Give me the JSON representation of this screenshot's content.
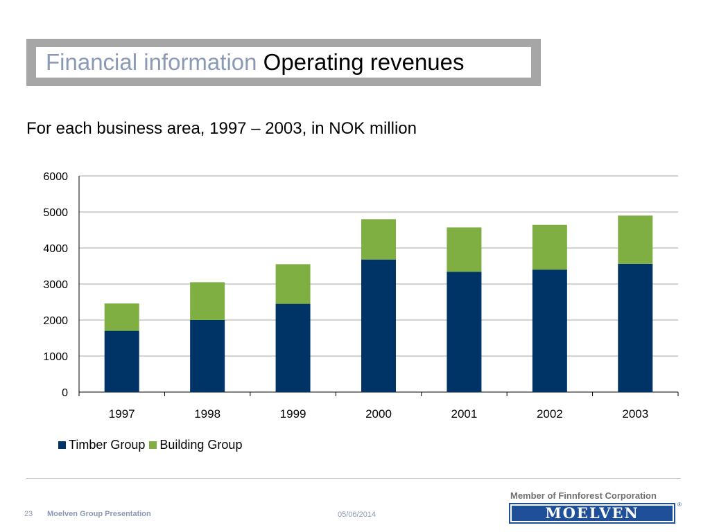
{
  "slide": {
    "title_part1": "Financial information",
    "title_part2": "Operating revenues",
    "subtitle": "For each business area, 1997 – 2003, in NOK million",
    "page_number": "23",
    "presentation_name": "Moelven Group Presentation",
    "date": "05/06/2014",
    "member_text": "Member of Finnforest Corporation",
    "logo_text": "MOELVEN",
    "logo_registered": "®"
  },
  "colors": {
    "timber": "#003366",
    "building": "#7fae43",
    "title_grey": "#8a99b4",
    "frame_grey": "#a6a6a6",
    "logo_blue": "#1f4f99"
  },
  "chart_data": {
    "type": "bar",
    "stacked": true,
    "categories": [
      "1997",
      "1998",
      "1999",
      "2000",
      "2001",
      "2002",
      "2003"
    ],
    "series": [
      {
        "name": "Timber Group",
        "values": [
          1700,
          2000,
          2450,
          3680,
          3340,
          3400,
          3560
        ]
      },
      {
        "name": "Building Group",
        "values": [
          760,
          1050,
          1100,
          1120,
          1230,
          1240,
          1340
        ]
      }
    ],
    "ylim": [
      0,
      6000
    ],
    "yticks": [
      0,
      1000,
      2000,
      3000,
      4000,
      5000,
      6000
    ],
    "grid": true,
    "legend": "bottom-left"
  }
}
